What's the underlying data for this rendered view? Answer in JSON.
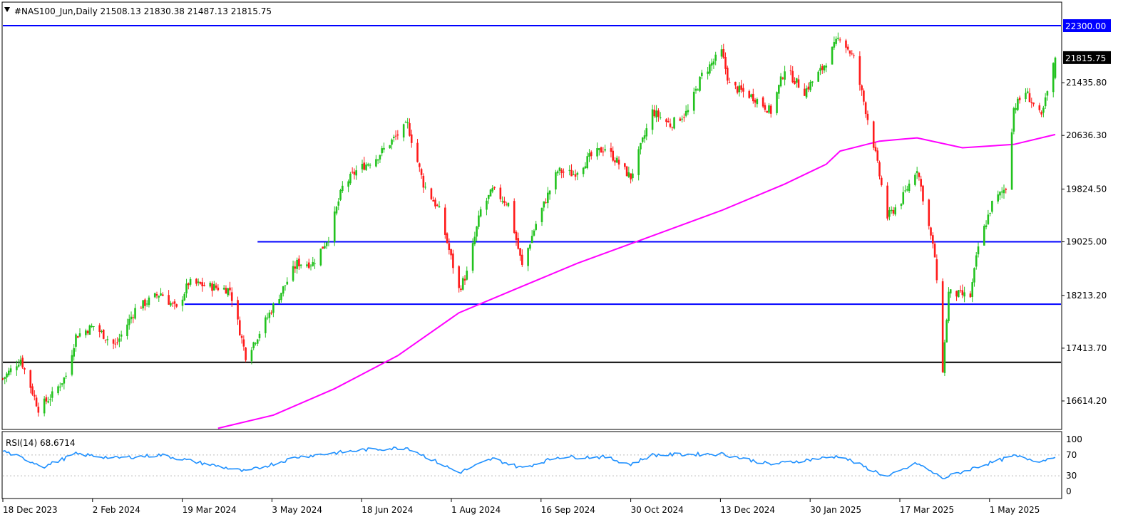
{
  "header": {
    "symbol_line": "#NAS100_Jun,Daily  21508.13 21830.38 21487.13 21815.75",
    "menu_icon": "triangle-down-icon"
  },
  "price_axis": {
    "ticks": [
      "21435.80",
      "20636.30",
      "19824.50",
      "19025.00",
      "18213.20",
      "17413.70",
      "16614.20"
    ],
    "tick_values": [
      21435.8,
      20636.3,
      19824.5,
      19025.0,
      18213.2,
      17413.7,
      16614.2
    ],
    "resistance_label": "22300.00",
    "current_price_label": "21815.75"
  },
  "rsi": {
    "label": "RSI(14) 68.6714",
    "ticks": [
      "100",
      "70",
      "30",
      "0"
    ],
    "tick_values": [
      100,
      70,
      30,
      0
    ]
  },
  "time_axis": {
    "labels": [
      "18 Dec 2023",
      "2 Feb 2024",
      "19 Mar 2024",
      "3 May 2024",
      "18 Jun 2024",
      "1 Aug 2024",
      "16 Sep 2024",
      "30 Oct 2024",
      "13 Dec 2024",
      "30 Jan 2025",
      "17 Mar 2025",
      "1 May 2025"
    ]
  },
  "colors": {
    "up_candle": "#22c21e",
    "down_candle": "#ff1a1a",
    "ma_line": "#ff00ff",
    "level_line": "#0000ff",
    "support_line": "#000000",
    "rsi_line": "#1e90ff",
    "resistance_badge": "#0000ff",
    "price_badge": "#000000"
  },
  "chart_data": {
    "type": "candlestick",
    "symbol": "#NAS100_Jun",
    "timeframe": "Daily",
    "last_bar": {
      "open": 21508.13,
      "high": 21830.38,
      "low": 21487.13,
      "close": 21815.75
    },
    "ylim": [
      16200,
      22550
    ],
    "x_range": [
      "2023-12-18",
      "2025-06-03"
    ],
    "horizontal_levels": [
      {
        "value": 22300.0,
        "color": "blue"
      },
      {
        "value": 19025.0,
        "color": "blue",
        "from": "2024-04-25"
      },
      {
        "value": 18080,
        "color": "blue",
        "from": "2024-03-19"
      },
      {
        "value": 17200,
        "color": "black"
      }
    ],
    "close_path": [
      [
        "2023-12-18",
        16950
      ],
      [
        "2023-12-27",
        17250
      ],
      [
        "2024-01-05",
        16500
      ],
      [
        "2024-01-12",
        16700
      ],
      [
        "2024-01-19",
        17000
      ],
      [
        "2024-01-24",
        17600
      ],
      [
        "2024-02-02",
        17750
      ],
      [
        "2024-02-13",
        17450
      ],
      [
        "2024-02-23",
        18000
      ],
      [
        "2024-03-07",
        18250
      ],
      [
        "2024-03-15",
        18000
      ],
      [
        "2024-03-21",
        18400
      ],
      [
        "2024-04-01",
        18350
      ],
      [
        "2024-04-11",
        18300
      ],
      [
        "2024-04-19",
        17300
      ],
      [
        "2024-04-25",
        17600
      ],
      [
        "2024-05-03",
        18050
      ],
      [
        "2024-05-15",
        18700
      ],
      [
        "2024-05-23",
        18700
      ],
      [
        "2024-05-31",
        19100
      ],
      [
        "2024-06-07",
        19850
      ],
      [
        "2024-06-14",
        20100
      ],
      [
        "2024-06-24",
        20300
      ],
      [
        "2024-07-05",
        20650
      ],
      [
        "2024-07-10",
        20800
      ],
      [
        "2024-07-18",
        19900
      ],
      [
        "2024-07-26",
        19500
      ],
      [
        "2024-08-05",
        18300
      ],
      [
        "2024-08-09",
        18550
      ],
      [
        "2024-08-16",
        19500
      ],
      [
        "2024-08-22",
        19800
      ],
      [
        "2024-08-30",
        19600
      ],
      [
        "2024-09-06",
        18650
      ],
      [
        "2024-09-13",
        19300
      ],
      [
        "2024-09-24",
        20100
      ],
      [
        "2024-10-02",
        20050
      ],
      [
        "2024-10-10",
        20300
      ],
      [
        "2024-10-18",
        20450
      ],
      [
        "2024-10-31",
        20000
      ],
      [
        "2024-11-11",
        21000
      ],
      [
        "2024-11-20",
        20800
      ],
      [
        "2024-11-29",
        21000
      ],
      [
        "2024-12-06",
        21550
      ],
      [
        "2024-12-16",
        21900
      ],
      [
        "2024-12-20",
        21400
      ],
      [
        "2025-01-02",
        21200
      ],
      [
        "2025-01-10",
        21000
      ],
      [
        "2025-01-17",
        21650
      ],
      [
        "2025-01-27",
        21300
      ],
      [
        "2025-02-05",
        21650
      ],
      [
        "2025-02-14",
        22150
      ],
      [
        "2025-02-21",
        21800
      ],
      [
        "2025-03-03",
        20500
      ],
      [
        "2025-03-10",
        19400
      ],
      [
        "2025-03-17",
        19650
      ],
      [
        "2025-03-25",
        20150
      ],
      [
        "2025-04-03",
        18800
      ],
      [
        "2025-04-07",
        17100
      ],
      [
        "2025-04-10",
        18250
      ],
      [
        "2025-04-21",
        18200
      ],
      [
        "2025-04-25",
        18950
      ],
      [
        "2025-05-02",
        19600
      ],
      [
        "2025-05-09",
        19850
      ],
      [
        "2025-05-13",
        21050
      ],
      [
        "2025-05-19",
        21300
      ],
      [
        "2025-05-27",
        20900
      ],
      [
        "2025-06-03",
        21815.75
      ]
    ],
    "ma_path": [
      [
        "2024-04-05",
        16200
      ],
      [
        "2024-05-03",
        16400
      ],
      [
        "2024-06-03",
        16800
      ],
      [
        "2024-07-05",
        17300
      ],
      [
        "2024-08-05",
        17950
      ],
      [
        "2024-09-02",
        18300
      ],
      [
        "2024-10-04",
        18700
      ],
      [
        "2024-11-05",
        19050
      ],
      [
        "2024-12-16",
        19500
      ],
      [
        "2025-01-17",
        19900
      ],
      [
        "2025-02-07",
        20200
      ],
      [
        "2025-02-14",
        20400
      ],
      [
        "2025-03-06",
        20550
      ],
      [
        "2025-03-25",
        20600
      ],
      [
        "2025-04-17",
        20450
      ],
      [
        "2025-05-13",
        20500
      ],
      [
        "2025-06-03",
        20650
      ]
    ],
    "rsi_path": [
      [
        "2023-12-18",
        78
      ],
      [
        "2024-01-08",
        48
      ],
      [
        "2024-01-24",
        72
      ],
      [
        "2024-02-13",
        64
      ],
      [
        "2024-03-07",
        70
      ],
      [
        "2024-04-19",
        38
      ],
      [
        "2024-05-15",
        66
      ],
      [
        "2024-06-18",
        80
      ],
      [
        "2024-07-10",
        84
      ],
      [
        "2024-08-05",
        36
      ],
      [
        "2024-08-22",
        63
      ],
      [
        "2024-09-06",
        45
      ],
      [
        "2024-09-24",
        66
      ],
      [
        "2024-10-18",
        66
      ],
      [
        "2024-10-31",
        52
      ],
      [
        "2024-11-11",
        70
      ],
      [
        "2024-12-16",
        72
      ],
      [
        "2025-01-10",
        52
      ],
      [
        "2025-02-14",
        68
      ],
      [
        "2025-03-10",
        28
      ],
      [
        "2025-03-25",
        54
      ],
      [
        "2025-04-07",
        25
      ],
      [
        "2025-04-25",
        48
      ],
      [
        "2025-05-13",
        68
      ],
      [
        "2025-05-27",
        58
      ],
      [
        "2025-06-03",
        68.67
      ]
    ],
    "ylabel": "",
    "xlabel": ""
  }
}
